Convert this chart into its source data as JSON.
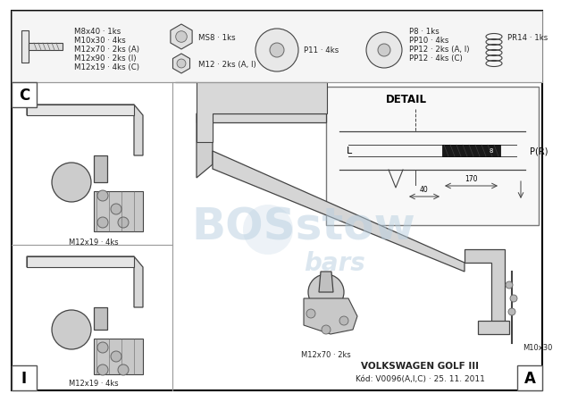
{
  "bg_color": "#ffffff",
  "line_color": "#444444",
  "light_gray": "#cccccc",
  "mid_gray": "#aaaaaa",
  "dark_gray": "#666666",
  "parts_row_bg": "#f0f0f0",
  "watermark_color": "#b8cfe0",
  "watermark_alpha": 0.5,
  "parts_labels_left": [
    "M8x40 · 1ks",
    "M10x30 · 4ks",
    "M12x70 · 2ks (A)",
    "M12x90 · 2ks (I)",
    "M12x19 · 4ks (C)"
  ],
  "ms8_label": "MS8 · 1ks",
  "m12_label": "M12 · 2ks (A, I)",
  "p11_label": "P11 · 4ks",
  "pr14_label": "PR14 · 1ks",
  "p8_label": "P8 · 1ks",
  "pp10_label": "PP10 · 4ks",
  "pp12ai_label": "PP12 · 2ks (A, I)",
  "pp12c_label": "PP12 · 4ks (C)",
  "detail_title": "DETAIL",
  "detail_L": "L",
  "detail_PR": "P(R)",
  "detail_170": "170",
  "detail_40": "40",
  "c_label": "C",
  "i_label": "I",
  "a_label": "A",
  "m12x19_c": "M12x19 · 4ks",
  "m12x19_i": "M12x19 · 4ks",
  "m12x70_label": "M12x70 · 2ks",
  "m10x30_label": "M10x30",
  "bottom_line1": "VOLKSWAGEN GOLF III",
  "bottom_line2": "Kód: V0096(A,I,C) · 25. 11. 2011"
}
